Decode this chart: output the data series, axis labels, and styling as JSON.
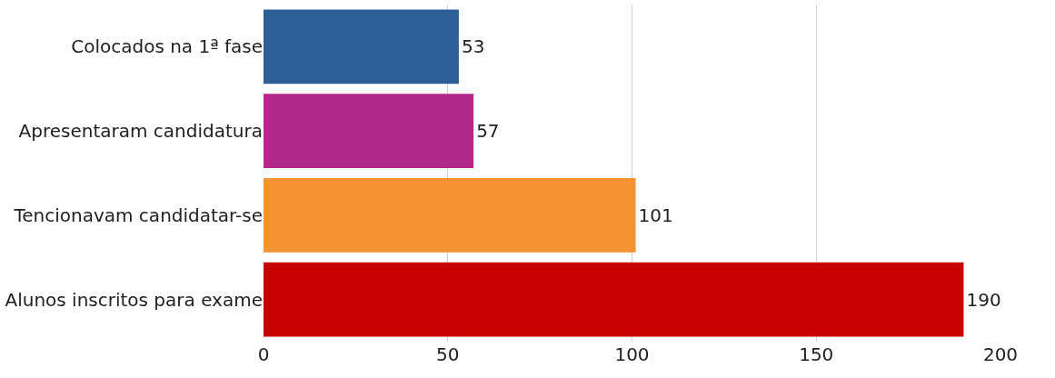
{
  "chart_data": {
    "type": "bar",
    "orientation": "horizontal",
    "categories": [
      "Colocados na 1ª fase",
      "Apresentaram candidatura",
      "Tencionavam candidatar-se",
      "Alunos inscritos para exame"
    ],
    "values": [
      53,
      57,
      101,
      190
    ],
    "colors": [
      "#2e5e96",
      "#b0288a",
      "#f59233",
      "#c80000"
    ],
    "xlim": [
      0,
      200
    ],
    "xticks": [
      0,
      50,
      100,
      150,
      200
    ],
    "grid": "x",
    "data_labels": true,
    "legend": false
  }
}
